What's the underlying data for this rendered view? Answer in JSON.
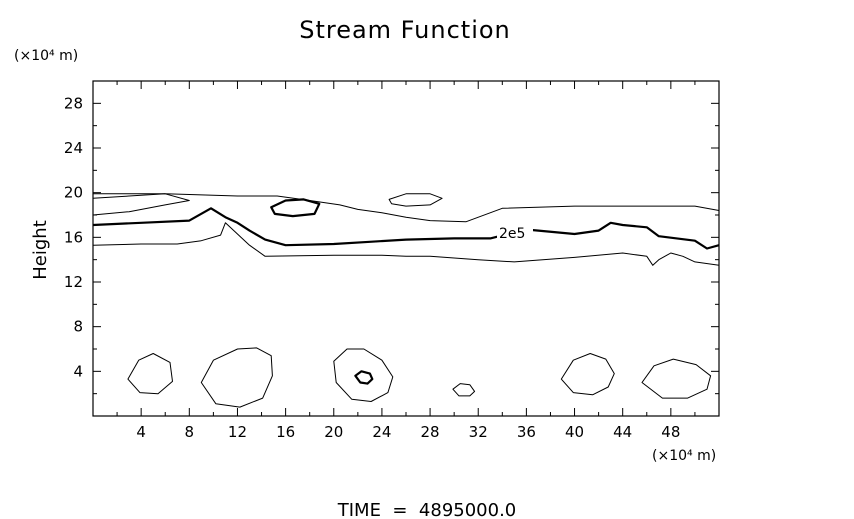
{
  "chart_data": {
    "type": "contour",
    "title": "Stream Function",
    "ylabel": "Height",
    "x_unit_label": "(×10⁴ m)",
    "y_unit_label": "(×10⁴ m)",
    "footer": "TIME  =  4895000.0",
    "xlim": [
      0,
      52
    ],
    "ylim": [
      0,
      30
    ],
    "x_ticks": [
      4,
      8,
      12,
      16,
      20,
      24,
      28,
      32,
      36,
      40,
      44,
      48
    ],
    "y_ticks": [
      4,
      8,
      12,
      16,
      20,
      24,
      28
    ],
    "x_tick_labels": [
      "4",
      "8",
      "12",
      "16",
      "20",
      "24",
      "28",
      "32",
      "36",
      "40",
      "44",
      "48"
    ],
    "y_tick_labels": [
      "4",
      "8",
      "12",
      "16",
      "20",
      "24",
      "28"
    ],
    "contour_label": "2e5",
    "contours": [
      {
        "level": "upper-thin",
        "style": "thin",
        "points": [
          [
            0,
            19.9
          ],
          [
            6,
            19.9
          ],
          [
            12,
            19.7
          ],
          [
            15.3,
            19.7
          ],
          [
            18,
            19.3
          ],
          [
            20.5,
            18.9
          ],
          [
            22,
            18.5
          ],
          [
            24,
            18.2
          ],
          [
            26,
            17.8
          ],
          [
            28,
            17.5
          ],
          [
            31,
            17.4
          ],
          [
            34,
            18.6
          ],
          [
            40,
            18.8
          ],
          [
            46,
            18.8
          ],
          [
            50,
            18.8
          ],
          [
            52,
            18.4
          ]
        ]
      },
      {
        "level": "2e5",
        "style": "thick",
        "points": [
          [
            0,
            17.1
          ],
          [
            4,
            17.3
          ],
          [
            8,
            17.5
          ],
          [
            9.8,
            18.6
          ],
          [
            11,
            17.8
          ],
          [
            12,
            17.3
          ],
          [
            13,
            16.6
          ],
          [
            14.3,
            15.8
          ],
          [
            16,
            15.3
          ],
          [
            20,
            15.4
          ],
          [
            23,
            15.6
          ],
          [
            26,
            15.8
          ],
          [
            30,
            15.9
          ],
          [
            33,
            15.9
          ],
          [
            36,
            16.7
          ],
          [
            40,
            16.3
          ],
          [
            42,
            16.6
          ],
          [
            43,
            17.3
          ],
          [
            44,
            17.1
          ],
          [
            46,
            16.9
          ],
          [
            47,
            16.1
          ],
          [
            50,
            15.7
          ],
          [
            51,
            15.0
          ],
          [
            52,
            15.3
          ]
        ]
      },
      {
        "level": "lower-thin",
        "style": "thin",
        "points": [
          [
            0,
            15.3
          ],
          [
            4,
            15.4
          ],
          [
            7,
            15.4
          ],
          [
            9,
            15.7
          ],
          [
            10.6,
            16.2
          ],
          [
            11,
            17.3
          ],
          [
            13,
            15.3
          ],
          [
            14.3,
            14.3
          ],
          [
            20,
            14.4
          ],
          [
            24,
            14.4
          ],
          [
            26,
            14.3
          ],
          [
            28,
            14.3
          ],
          [
            32,
            14.0
          ],
          [
            35,
            13.8
          ],
          [
            40,
            14.2
          ],
          [
            44,
            14.6
          ],
          [
            46,
            14.3
          ],
          [
            46.5,
            13.5
          ],
          [
            47,
            14.0
          ],
          [
            48,
            14.6
          ],
          [
            49,
            14.3
          ],
          [
            50,
            13.8
          ],
          [
            52,
            13.5
          ]
        ]
      },
      {
        "level": "inner-upper",
        "style": "thin",
        "points": [
          [
            0,
            18.0
          ],
          [
            3,
            18.3
          ],
          [
            6,
            18.9
          ],
          [
            8,
            19.3
          ],
          [
            6,
            19.9
          ],
          [
            3,
            19.7
          ],
          [
            0,
            19.5
          ]
        ]
      },
      {
        "level": "cell-upper-16",
        "style": "thick",
        "closed": true,
        "points": [
          [
            14.8,
            18.7
          ],
          [
            16,
            19.3
          ],
          [
            17.5,
            19.4
          ],
          [
            18.8,
            19.0
          ],
          [
            18.4,
            18.1
          ],
          [
            16.6,
            17.9
          ],
          [
            15.1,
            18.1
          ]
        ]
      },
      {
        "level": "cell-upper-27",
        "style": "thin",
        "closed": true,
        "points": [
          [
            24.6,
            19.4
          ],
          [
            26,
            19.9
          ],
          [
            28,
            19.9
          ],
          [
            29,
            19.5
          ],
          [
            28,
            18.9
          ],
          [
            26,
            18.8
          ],
          [
            24.8,
            19.0
          ]
        ]
      },
      {
        "level": "cell-low-4",
        "style": "thin",
        "closed": true,
        "points": [
          [
            2.9,
            3.3
          ],
          [
            3.8,
            5.0
          ],
          [
            5.0,
            5.6
          ],
          [
            6.4,
            4.8
          ],
          [
            6.6,
            3.1
          ],
          [
            5.4,
            2.0
          ],
          [
            3.9,
            2.1
          ]
        ]
      },
      {
        "level": "cell-low-12",
        "style": "thin",
        "closed": true,
        "points": [
          [
            9.0,
            3.0
          ],
          [
            10.0,
            5.0
          ],
          [
            12.0,
            6.0
          ],
          [
            13.6,
            6.1
          ],
          [
            14.8,
            5.4
          ],
          [
            14.9,
            3.6
          ],
          [
            14.1,
            1.6
          ],
          [
            12.2,
            0.8
          ],
          [
            10.2,
            1.1
          ]
        ]
      },
      {
        "level": "cell-low-22",
        "style": "thin",
        "closed": true,
        "points": [
          [
            20.0,
            4.9
          ],
          [
            21.1,
            6.0
          ],
          [
            22.5,
            6.0
          ],
          [
            24.0,
            5.0
          ],
          [
            24.9,
            3.5
          ],
          [
            24.5,
            2.1
          ],
          [
            23.1,
            1.3
          ],
          [
            21.5,
            1.5
          ],
          [
            20.2,
            3.0
          ]
        ]
      },
      {
        "level": "cell-low-22-inner",
        "style": "thick",
        "closed": true,
        "points": [
          [
            21.8,
            3.6
          ],
          [
            22.3,
            4.0
          ],
          [
            23.0,
            3.8
          ],
          [
            23.2,
            3.3
          ],
          [
            22.8,
            2.9
          ],
          [
            22.2,
            3.0
          ]
        ]
      },
      {
        "level": "cell-low-31",
        "style": "thin",
        "closed": true,
        "points": [
          [
            29.9,
            2.4
          ],
          [
            30.5,
            2.9
          ],
          [
            31.3,
            2.8
          ],
          [
            31.7,
            2.2
          ],
          [
            31.3,
            1.8
          ],
          [
            30.4,
            1.8
          ]
        ]
      },
      {
        "level": "cell-low-41",
        "style": "thin",
        "closed": true,
        "points": [
          [
            38.9,
            3.3
          ],
          [
            39.9,
            5.0
          ],
          [
            41.3,
            5.6
          ],
          [
            42.6,
            5.1
          ],
          [
            43.3,
            3.8
          ],
          [
            42.8,
            2.6
          ],
          [
            41.5,
            1.9
          ],
          [
            39.9,
            2.1
          ]
        ]
      },
      {
        "level": "cell-low-48",
        "style": "thin",
        "closed": true,
        "points": [
          [
            45.6,
            3.0
          ],
          [
            46.6,
            4.5
          ],
          [
            48.2,
            5.1
          ],
          [
            50.1,
            4.6
          ],
          [
            51.3,
            3.6
          ],
          [
            51.0,
            2.4
          ],
          [
            49.4,
            1.6
          ],
          [
            47.3,
            1.6
          ]
        ]
      }
    ]
  }
}
